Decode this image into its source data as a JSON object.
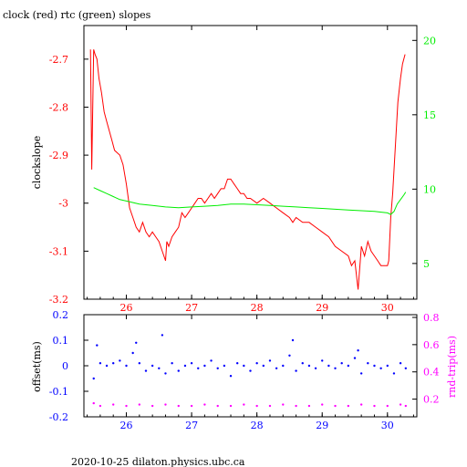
{
  "header": {
    "title": "clock (red) rtc (green) slopes"
  },
  "footer": {
    "text": "2020-10-25  dilaton.physics.ubc.ca"
  },
  "colors": {
    "red": "#ff0000",
    "green": "#00ee00",
    "blue": "#0000ff",
    "magenta": "#ff00ff",
    "axis": "#000000"
  },
  "chart_data": [
    {
      "type": "line",
      "title": "clock (red) rtc (green) slopes",
      "xlabel": "",
      "ylabel": "clockslope",
      "xlim": [
        25.35,
        30.45
      ],
      "ylim": [
        -3.2,
        -2.63
      ],
      "y2lim": [
        2.6,
        21.0
      ],
      "x_ticks": [
        26,
        27,
        28,
        29,
        30
      ],
      "y_ticks": [
        -3.2,
        -3.1,
        -3.0,
        -2.9,
        -2.8,
        -2.7
      ],
      "y_tick_labels": [
        "-3.2",
        "-3.1",
        "-3",
        "-2.9",
        "-2.8",
        "-2.7"
      ],
      "y2_ticks": [
        5,
        10,
        15,
        20
      ],
      "series": [
        {
          "name": "clock",
          "color": "#ff0000",
          "axis": "left",
          "x": [
            25.45,
            25.47,
            25.5,
            25.52,
            25.55,
            25.58,
            25.62,
            25.66,
            25.7,
            25.74,
            25.78,
            25.82,
            25.86,
            25.9,
            25.95,
            26.0,
            26.05,
            26.1,
            26.15,
            26.2,
            26.25,
            26.3,
            26.35,
            26.4,
            26.45,
            26.5,
            26.55,
            26.6,
            26.62,
            26.65,
            26.7,
            26.75,
            26.8,
            26.85,
            26.9,
            26.95,
            27.0,
            27.05,
            27.1,
            27.15,
            27.2,
            27.25,
            27.3,
            27.35,
            27.4,
            27.45,
            27.5,
            27.55,
            27.6,
            27.65,
            27.7,
            27.75,
            27.8,
            27.85,
            27.9,
            28.0,
            28.1,
            28.2,
            28.3,
            28.4,
            28.5,
            28.55,
            28.6,
            28.7,
            28.8,
            28.9,
            29.0,
            29.1,
            29.2,
            29.3,
            29.4,
            29.45,
            29.5,
            29.55,
            29.6,
            29.65,
            29.7,
            29.75,
            29.8,
            29.85,
            29.9,
            29.95,
            30.0,
            30.02,
            30.05,
            30.08,
            30.1,
            30.13,
            30.16,
            30.2,
            30.23,
            30.27
          ],
          "y": [
            -2.68,
            -2.93,
            -2.68,
            -2.69,
            -2.7,
            -2.74,
            -2.77,
            -2.81,
            -2.83,
            -2.85,
            -2.87,
            -2.89,
            -2.895,
            -2.9,
            -2.92,
            -2.96,
            -3.01,
            -3.03,
            -3.05,
            -3.06,
            -3.04,
            -3.06,
            -3.07,
            -3.06,
            -3.07,
            -3.08,
            -3.1,
            -3.12,
            -3.08,
            -3.09,
            -3.07,
            -3.06,
            -3.05,
            -3.02,
            -3.03,
            -3.02,
            -3.01,
            -3.0,
            -2.99,
            -2.99,
            -3.0,
            -2.99,
            -2.98,
            -2.99,
            -2.98,
            -2.97,
            -2.97,
            -2.95,
            -2.95,
            -2.96,
            -2.97,
            -2.98,
            -2.98,
            -2.99,
            -2.99,
            -3.0,
            -2.99,
            -3.0,
            -3.01,
            -3.02,
            -3.03,
            -3.04,
            -3.03,
            -3.04,
            -3.04,
            -3.05,
            -3.06,
            -3.07,
            -3.09,
            -3.1,
            -3.11,
            -3.13,
            -3.12,
            -3.18,
            -3.09,
            -3.11,
            -3.08,
            -3.1,
            -3.11,
            -3.12,
            -3.13,
            -3.13,
            -3.13,
            -3.12,
            -3.03,
            -2.98,
            -2.93,
            -2.86,
            -2.79,
            -2.74,
            -2.71,
            -2.69
          ]
        },
        {
          "name": "rtc",
          "color": "#00ee00",
          "axis": "right",
          "x": [
            25.5,
            25.6,
            25.7,
            25.8,
            25.9,
            26.0,
            26.2,
            26.4,
            26.6,
            26.8,
            27.0,
            27.2,
            27.4,
            27.6,
            27.8,
            28.0,
            28.2,
            28.4,
            28.6,
            28.8,
            29.0,
            29.2,
            29.4,
            29.6,
            29.8,
            30.0,
            30.05,
            30.1,
            30.15,
            30.2,
            30.25,
            30.28
          ],
          "y": [
            10.1,
            9.9,
            9.7,
            9.5,
            9.3,
            9.2,
            9.0,
            8.9,
            8.8,
            8.75,
            8.8,
            8.85,
            8.9,
            9.0,
            9.0,
            8.95,
            8.9,
            8.85,
            8.8,
            8.75,
            8.7,
            8.65,
            8.6,
            8.55,
            8.5,
            8.4,
            8.3,
            8.5,
            9.0,
            9.3,
            9.6,
            9.8
          ]
        }
      ]
    },
    {
      "type": "scatter",
      "title": "",
      "xlabel": "",
      "ylabel": "offset(ms)",
      "y2label": "rnd-trip(ms)",
      "xlim": [
        25.35,
        30.45
      ],
      "ylim": [
        -0.2,
        0.2
      ],
      "y2lim": [
        0.07,
        0.82
      ],
      "x_ticks": [
        26,
        27,
        28,
        29,
        30
      ],
      "y_ticks": [
        -0.2,
        -0.1,
        0,
        0.1,
        0.2
      ],
      "y_tick_labels": [
        "-0.2",
        "-0.1",
        "0",
        "0.1",
        "0.2"
      ],
      "y2_ticks": [
        0.2,
        0.4,
        0.6,
        0.8
      ],
      "y2_tick_labels": [
        "0.2",
        "0.4",
        "0.6",
        "0.8"
      ],
      "series": [
        {
          "name": "offset",
          "color": "#0000ff",
          "axis": "left",
          "x": [
            25.5,
            25.55,
            25.6,
            25.7,
            25.8,
            25.9,
            26.0,
            26.1,
            26.15,
            26.2,
            26.3,
            26.4,
            26.5,
            26.55,
            26.6,
            26.7,
            26.8,
            26.9,
            27.0,
            27.1,
            27.2,
            27.3,
            27.4,
            27.5,
            27.6,
            27.7,
            27.8,
            27.9,
            28.0,
            28.1,
            28.2,
            28.3,
            28.4,
            28.5,
            28.55,
            28.6,
            28.7,
            28.8,
            28.9,
            29.0,
            29.1,
            29.2,
            29.3,
            29.4,
            29.5,
            29.55,
            29.6,
            29.7,
            29.8,
            29.9,
            30.0,
            30.1,
            30.2,
            30.28
          ],
          "y": [
            -0.05,
            0.08,
            0.01,
            0.0,
            0.01,
            0.02,
            0.0,
            0.05,
            0.09,
            0.01,
            -0.02,
            0.0,
            -0.01,
            0.12,
            -0.03,
            0.01,
            -0.02,
            0.0,
            0.01,
            -0.01,
            0.0,
            0.02,
            -0.01,
            0.0,
            -0.04,
            0.01,
            0.0,
            -0.02,
            0.01,
            0.0,
            0.02,
            -0.01,
            0.0,
            0.04,
            0.1,
            -0.02,
            0.01,
            0.0,
            -0.01,
            0.02,
            0.0,
            -0.01,
            0.01,
            0.0,
            0.03,
            0.06,
            -0.03,
            0.01,
            0.0,
            -0.01,
            0.0,
            -0.03,
            0.01,
            -0.01
          ]
        },
        {
          "name": "rnd-trip",
          "color": "#ff00ff",
          "axis": "right",
          "x": [
            25.5,
            25.6,
            25.8,
            26.0,
            26.2,
            26.4,
            26.6,
            26.8,
            27.0,
            27.2,
            27.4,
            27.6,
            27.8,
            28.0,
            28.2,
            28.4,
            28.6,
            28.8,
            29.0,
            29.2,
            29.4,
            29.6,
            29.8,
            30.0,
            30.2,
            30.28
          ],
          "y": [
            0.17,
            0.15,
            0.16,
            0.15,
            0.16,
            0.15,
            0.16,
            0.15,
            0.15,
            0.16,
            0.15,
            0.15,
            0.16,
            0.15,
            0.15,
            0.16,
            0.15,
            0.15,
            0.16,
            0.15,
            0.15,
            0.16,
            0.15,
            0.15,
            0.16,
            0.15
          ]
        }
      ]
    }
  ]
}
